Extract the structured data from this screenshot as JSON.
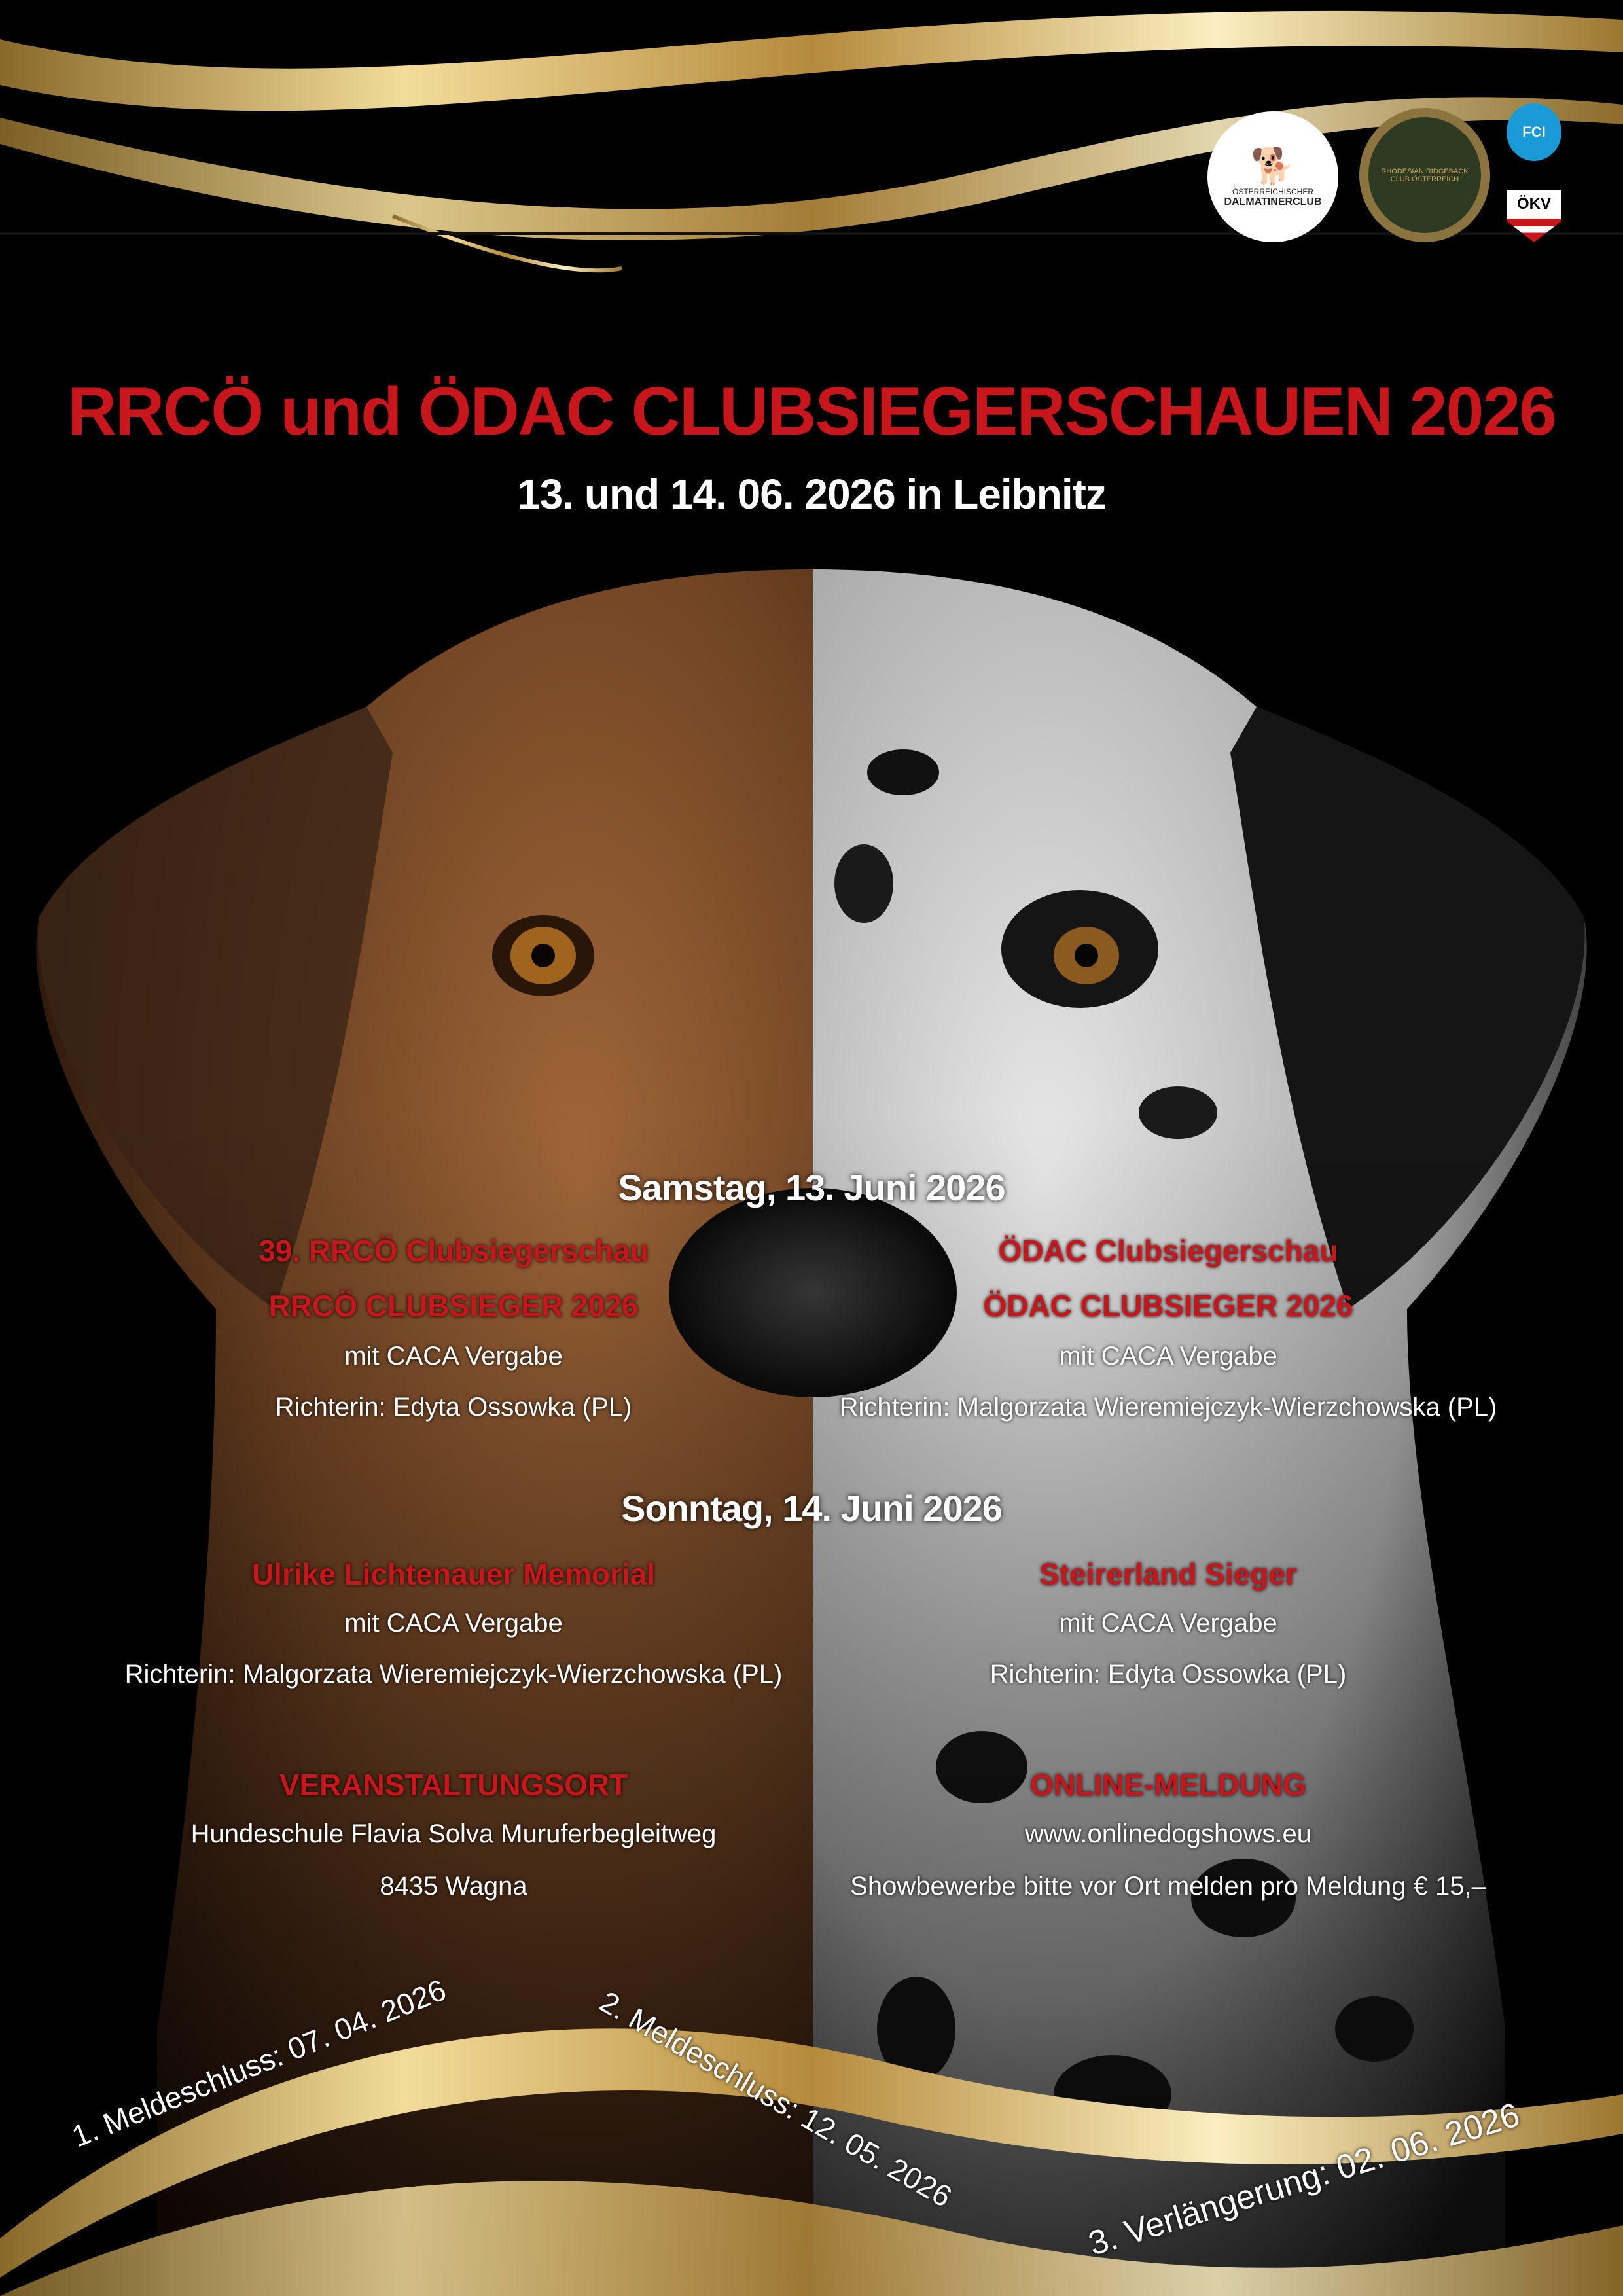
{
  "logos": [
    {
      "name": "Österreichischer Dalmatinerclub",
      "line1": "ÖSTERREICHISCHER",
      "line2": "DALMATINERCLUB"
    },
    {
      "name": "Rhodesian Ridgeback Club Österreich",
      "text": "RHODESIAN RIDGEBACK CLUB ÖSTERREICH"
    },
    {
      "name": "FCI",
      "text": "FCI"
    },
    {
      "name": "ÖKV",
      "text": "ÖKV"
    }
  ],
  "header": {
    "title": "RRCÖ und ÖDAC CLUBSIEGERSCHAUEN 2026",
    "subtitle": "13. und 14. 06. 2026 in Leibnitz"
  },
  "saturday": {
    "heading": "Samstag, 13. Juni 2026",
    "left": {
      "title": "39. RRCÖ Clubsiegerschau",
      "award": "RRCÖ CLUBSIEGER 2026",
      "caca": "mit CACA Vergabe",
      "judge": "Richterin: Edyta Ossowka (PL)"
    },
    "right": {
      "title": "ÖDAC Clubsiegerschau",
      "award": "ÖDAC CLUBSIEGER 2026",
      "caca": "mit CACA Vergabe",
      "judge": "Richterin: Malgorzata Wieremiejczyk-Wierzchowska (PL)"
    }
  },
  "sunday": {
    "heading": "Sonntag, 14. Juni 2026",
    "left": {
      "title": "Ulrike Lichtenauer Memorial",
      "caca": "mit CACA Vergabe",
      "judge": "Richterin: Malgorzata Wieremiejczyk-Wierzchowska (PL)"
    },
    "right": {
      "title": "Steirerland Sieger",
      "caca": "mit CACA Vergabe",
      "judge": "Richterin: Edyta Ossowka (PL)"
    }
  },
  "venue": {
    "heading": "VERANSTALTUNGSORT",
    "line1": "Hundeschule Flavia Solva Muruferbegleitweg",
    "line2": "8435 Wagna"
  },
  "online": {
    "heading": "ONLINE-MELDUNG",
    "url": "www.onlinedogshows.eu",
    "note": "Showbewerbe bitte vor Ort melden pro Meldung € 15,–"
  },
  "deadlines": [
    "1. Meldeschluss: 07. 04. 2026",
    "2. Meldeschluss: 12. 05. 2026",
    "3. Verlängerung: 02. 06. 2026"
  ],
  "colors": {
    "accent_red": "#c8161d",
    "gold": "#d4b46a",
    "background": "#000000"
  }
}
